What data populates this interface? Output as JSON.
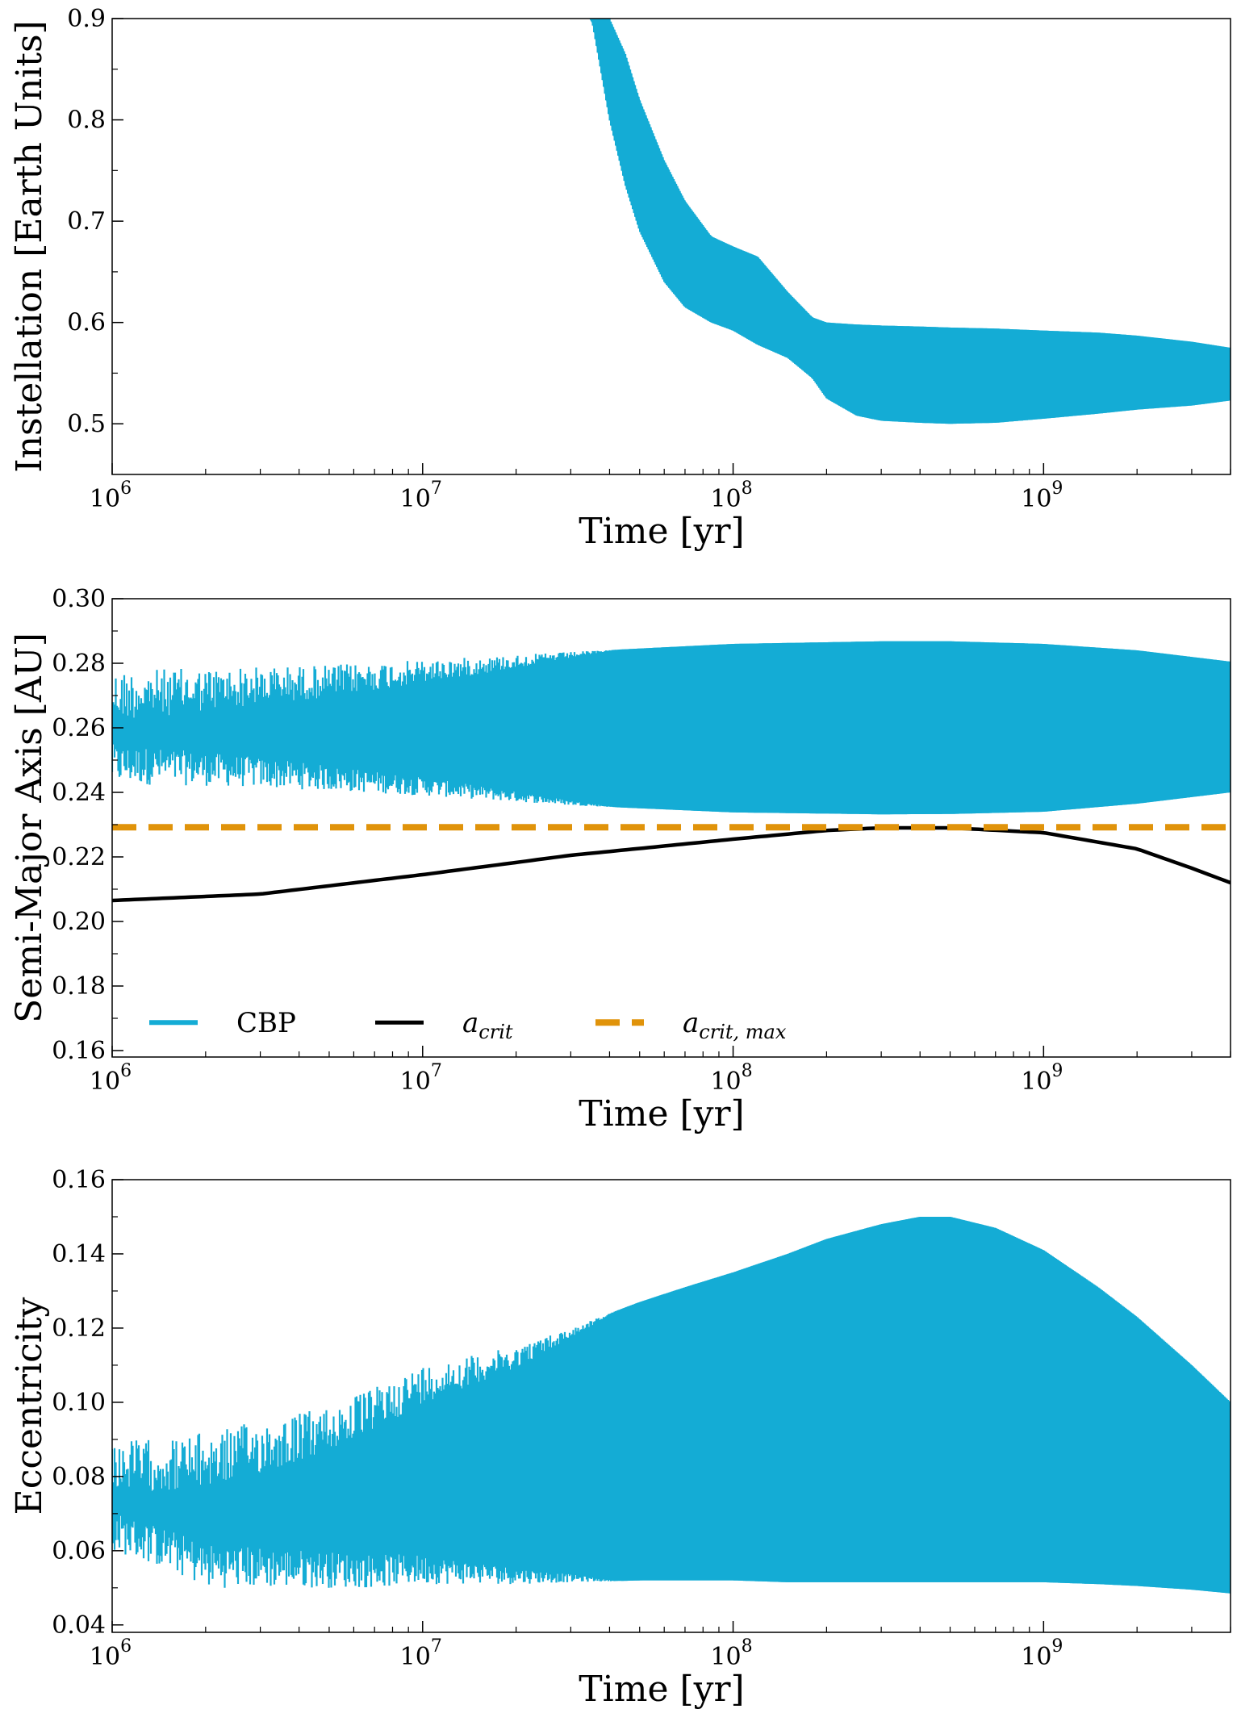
{
  "colors": {
    "cbp": "#14acd5",
    "acrit": "#000000",
    "acrit_max": "#e0930a"
  },
  "chart_data": [
    {
      "type": "area",
      "panel": "instellation",
      "xscale": "log",
      "xlim": [
        1000000,
        4000000000
      ],
      "ylim": [
        0.45,
        0.9
      ],
      "xlabel": "Time [yr]",
      "ylabel": "Instellation [Earth Units]",
      "xticks": [
        {
          "value": 1000000,
          "base": "10",
          "exp": "6"
        },
        {
          "value": 10000000,
          "base": "10",
          "exp": "7"
        },
        {
          "value": 100000000,
          "base": "10",
          "exp": "8"
        },
        {
          "value": 1000000000,
          "base": "10",
          "exp": "9"
        }
      ],
      "yticks": [
        {
          "value": 0.5,
          "label": "0.5"
        },
        {
          "value": 0.6,
          "label": "0.6"
        },
        {
          "value": 0.7,
          "label": "0.7"
        },
        {
          "value": 0.8,
          "label": "0.8"
        },
        {
          "value": 0.9,
          "label": "0.9"
        }
      ],
      "series": [
        {
          "name": "CBP",
          "x": [
            32000000,
            35000000,
            40000000,
            45000000,
            50000000,
            60000000,
            70000000,
            85000000,
            100000000,
            120000000,
            150000000,
            180000000,
            200000000,
            250000000,
            300000000,
            400000000,
            500000000,
            700000000,
            1000000000,
            1500000000,
            2000000000,
            3000000000,
            4000000000
          ],
          "upper": [
            0.9,
            0.9,
            0.9,
            0.865,
            0.82,
            0.76,
            0.72,
            0.685,
            0.675,
            0.665,
            0.63,
            0.605,
            0.6,
            0.598,
            0.597,
            0.596,
            0.595,
            0.594,
            0.592,
            0.59,
            0.587,
            0.581,
            0.575
          ],
          "lower": [
            0.9,
            0.9,
            0.8,
            0.735,
            0.69,
            0.64,
            0.615,
            0.6,
            0.592,
            0.578,
            0.565,
            0.545,
            0.525,
            0.508,
            0.503,
            0.501,
            0.5,
            0.501,
            0.505,
            0.51,
            0.514,
            0.518,
            0.523
          ]
        }
      ]
    },
    {
      "type": "area",
      "panel": "semi-major-axis",
      "xscale": "log",
      "xlim": [
        1000000,
        4000000000
      ],
      "ylim": [
        0.158,
        0.3
      ],
      "xlabel": "Time [yr]",
      "ylabel": "Semi-Major Axis [AU]",
      "xticks": [
        {
          "value": 1000000,
          "base": "10",
          "exp": "6"
        },
        {
          "value": 10000000,
          "base": "10",
          "exp": "7"
        },
        {
          "value": 100000000,
          "base": "10",
          "exp": "8"
        },
        {
          "value": 1000000000,
          "base": "10",
          "exp": "9"
        }
      ],
      "yticks": [
        {
          "value": 0.16,
          "label": "0.16"
        },
        {
          "value": 0.18,
          "label": "0.18"
        },
        {
          "value": 0.2,
          "label": "0.20"
        },
        {
          "value": 0.22,
          "label": "0.22"
        },
        {
          "value": 0.24,
          "label": "0.24"
        },
        {
          "value": 0.26,
          "label": "0.26"
        },
        {
          "value": 0.28,
          "label": "0.28"
        },
        {
          "value": 0.3,
          "label": "0.30"
        }
      ],
      "legend": {
        "placement": "lower-left",
        "ncol": 3
      },
      "series": [
        {
          "name": "CBP",
          "kind": "band",
          "x": [
            1000000,
            2000000,
            3000000,
            5000000,
            10000000,
            30000000,
            100000000,
            300000000,
            500000000,
            1000000000,
            2000000000,
            4000000000
          ],
          "upper": [
            0.278,
            0.2785,
            0.279,
            0.2795,
            0.281,
            0.2835,
            0.286,
            0.2868,
            0.2868,
            0.286,
            0.284,
            0.2805
          ],
          "lower": [
            0.2425,
            0.242,
            0.2415,
            0.2405,
            0.239,
            0.236,
            0.2338,
            0.2332,
            0.2333,
            0.234,
            0.2365,
            0.24
          ]
        },
        {
          "name": "a_crit",
          "label_base": "a",
          "label_sub": "crit",
          "kind": "line",
          "x": [
            1000000,
            3000000,
            10000000,
            30000000,
            100000000,
            200000000,
            300000000,
            500000000,
            1000000000,
            2000000000,
            3000000000,
            4000000000
          ],
          "values": [
            0.2065,
            0.2085,
            0.2145,
            0.2205,
            0.2255,
            0.2282,
            0.229,
            0.229,
            0.2275,
            0.2225,
            0.2165,
            0.212
          ]
        },
        {
          "name": "a_crit,max",
          "label_base": "a",
          "label_sub": "crit, max",
          "kind": "dashed",
          "x": [
            1000000,
            4000000000
          ],
          "values": [
            0.2292,
            0.2292
          ]
        }
      ]
    },
    {
      "type": "area",
      "panel": "eccentricity",
      "xscale": "log",
      "xlim": [
        1000000,
        4000000000
      ],
      "ylim": [
        0.038,
        0.16
      ],
      "xlabel": "Time [yr]",
      "ylabel": "Eccentricity",
      "xticks": [
        {
          "value": 1000000,
          "base": "10",
          "exp": "6"
        },
        {
          "value": 10000000,
          "base": "10",
          "exp": "7"
        },
        {
          "value": 100000000,
          "base": "10",
          "exp": "8"
        },
        {
          "value": 1000000000,
          "base": "10",
          "exp": "9"
        }
      ],
      "yticks": [
        {
          "value": 0.04,
          "label": "0.04"
        },
        {
          "value": 0.06,
          "label": "0.06"
        },
        {
          "value": 0.08,
          "label": "0.08"
        },
        {
          "value": 0.1,
          "label": "0.10"
        },
        {
          "value": 0.12,
          "label": "0.12"
        },
        {
          "value": 0.14,
          "label": "0.14"
        },
        {
          "value": 0.16,
          "label": "0.16"
        }
      ],
      "series": [
        {
          "name": "CBP",
          "x": [
            1000000,
            1500000,
            2000000,
            3000000,
            5000000,
            7000000,
            10000000,
            20000000,
            30000000,
            50000000,
            70000000,
            100000000,
            150000000,
            200000000,
            300000000,
            400000000,
            500000000,
            700000000,
            1000000000,
            1500000000,
            2000000000,
            3000000000,
            4000000000
          ],
          "upper": [
            0.09,
            0.09,
            0.092,
            0.095,
            0.099,
            0.104,
            0.11,
            0.115,
            0.12,
            0.127,
            0.131,
            0.135,
            0.14,
            0.144,
            0.148,
            0.15,
            0.15,
            0.147,
            0.141,
            0.131,
            0.123,
            0.11,
            0.1
          ],
          "lower": [
            0.06,
            0.055,
            0.05,
            0.05,
            0.05,
            0.05,
            0.051,
            0.051,
            0.0515,
            0.052,
            0.052,
            0.052,
            0.0515,
            0.0515,
            0.0515,
            0.0515,
            0.0515,
            0.0515,
            0.0515,
            0.051,
            0.0505,
            0.0495,
            0.0485
          ]
        }
      ]
    }
  ]
}
